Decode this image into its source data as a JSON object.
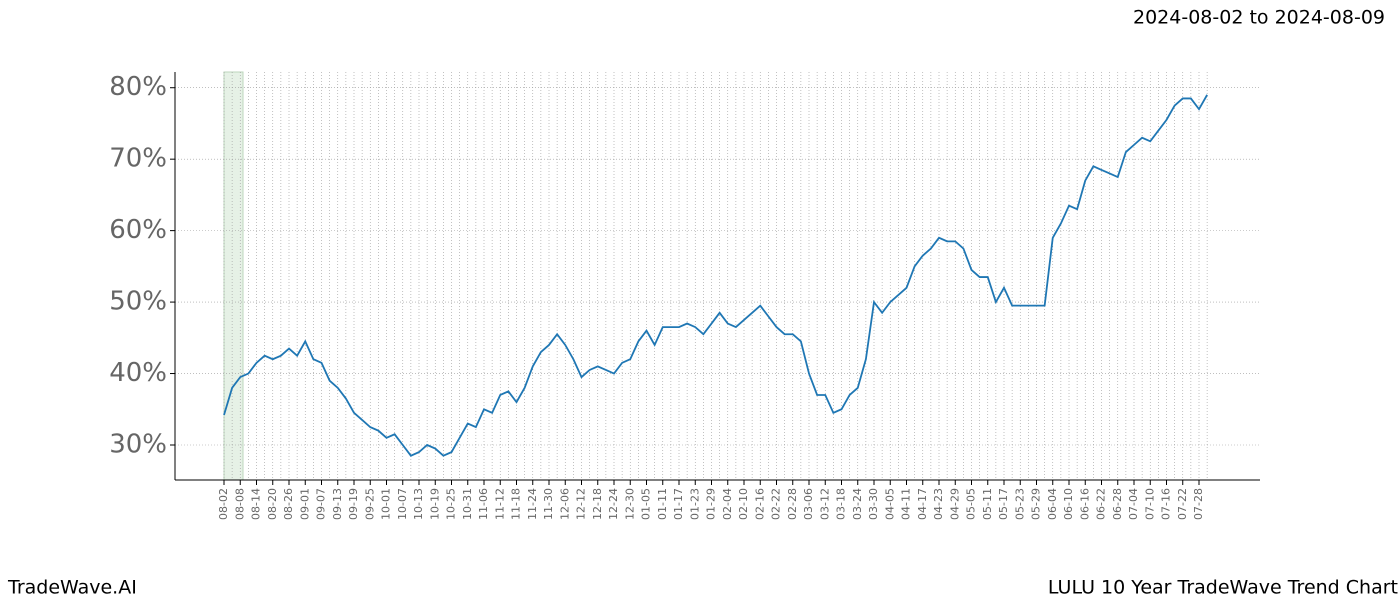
{
  "chart_data": {
    "type": "line",
    "title": "2024-08-02 to 2024-08-09",
    "footer_left": "TradeWave.AI",
    "footer_right": "LULU 10 Year TradeWave Trend Chart",
    "categories": [
      "08-02",
      null,
      "08-08",
      null,
      "08-14",
      null,
      "08-20",
      null,
      "08-26",
      null,
      "09-01",
      null,
      "09-07",
      null,
      "09-13",
      null,
      "09-19",
      null,
      "09-25",
      null,
      "10-01",
      null,
      "10-07",
      null,
      "10-13",
      null,
      "10-19",
      null,
      "10-25",
      null,
      "10-31",
      null,
      "11-06",
      null,
      "11-12",
      null,
      "11-18",
      null,
      "11-24",
      null,
      "11-30",
      null,
      "12-06",
      null,
      "12-12",
      null,
      "12-18",
      null,
      "12-24",
      null,
      "12-30",
      null,
      "01-05",
      null,
      "01-11",
      null,
      "01-17",
      null,
      "01-23",
      null,
      "01-29",
      null,
      "02-04",
      null,
      "02-10",
      null,
      "02-16",
      null,
      "02-22",
      null,
      "02-28",
      null,
      "03-06",
      null,
      "03-12",
      null,
      "03-18",
      null,
      "03-24",
      null,
      "03-30",
      null,
      "04-05",
      null,
      "04-11",
      null,
      "04-17",
      null,
      "04-23",
      null,
      "04-29",
      null,
      "05-05",
      null,
      "05-11",
      null,
      "05-17",
      null,
      "05-23",
      null,
      "05-29",
      null,
      "06-04",
      null,
      "06-10",
      null,
      "06-16",
      null,
      "06-22",
      null,
      "06-28",
      null,
      "07-04",
      null,
      "07-10",
      null,
      "07-16",
      null,
      "07-22",
      null,
      "07-28",
      null
    ],
    "series": [
      {
        "color": "#1f77b4",
        "values": [
          34.2,
          38,
          39.5,
          40,
          41.5,
          42.5,
          42,
          42.5,
          43.5,
          42.5,
          44.5,
          42,
          41.5,
          39,
          38,
          36.5,
          34.5,
          33.5,
          32.5,
          32,
          31,
          31.5,
          30,
          28.5,
          29,
          30,
          29.5,
          28.5,
          29,
          31,
          33,
          32.5,
          35,
          34.5,
          37,
          37.5,
          36,
          38,
          41,
          43,
          44,
          45.5,
          44,
          42,
          39.5,
          40.5,
          41,
          40.5,
          40,
          41.5,
          42,
          44.5,
          46,
          44,
          46.5,
          46.5,
          46.5,
          47,
          46.5,
          45.5,
          47,
          48.5,
          47,
          46.5,
          47.5,
          48.5,
          49.5,
          48,
          46.5,
          45.5,
          45.5,
          44.5,
          40,
          37,
          37,
          34.5,
          35,
          37,
          38,
          42,
          50,
          48.5,
          50,
          51,
          52,
          55,
          56.5,
          57.5,
          59,
          58.5,
          58.5,
          57.5,
          54.5,
          53.5,
          53.5,
          50,
          52,
          49.5,
          49.5,
          49.5,
          49.5,
          49.5,
          59,
          61,
          63.5,
          63,
          67,
          69,
          68.5,
          68,
          67.5,
          71,
          72,
          73,
          72.5,
          74,
          75.5,
          77.5,
          78.5,
          78.5,
          77,
          79
        ]
      }
    ],
    "ylim": [
      25.1,
      82.2
    ],
    "yticks": [
      {
        "value": 30,
        "label": "30%"
      },
      {
        "value": 40,
        "label": "40%"
      },
      {
        "value": 50,
        "label": "50%"
      },
      {
        "value": 60,
        "label": "60%"
      },
      {
        "value": 70,
        "label": "70%"
      },
      {
        "value": 80,
        "label": "80%"
      }
    ],
    "grid": true
  }
}
